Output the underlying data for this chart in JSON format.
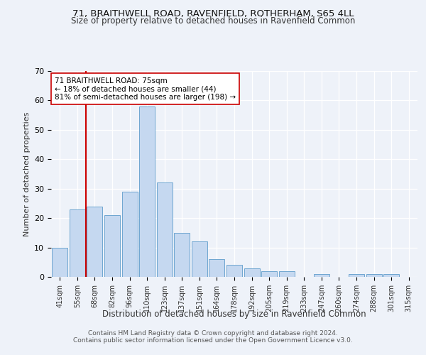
{
  "title1": "71, BRAITHWELL ROAD, RAVENFIELD, ROTHERHAM, S65 4LL",
  "title2": "Size of property relative to detached houses in Ravenfield Common",
  "xlabel": "Distribution of detached houses by size in Ravenfield Common",
  "ylabel": "Number of detached properties",
  "categories": [
    "41sqm",
    "55sqm",
    "68sqm",
    "82sqm",
    "96sqm",
    "110sqm",
    "123sqm",
    "137sqm",
    "151sqm",
    "164sqm",
    "178sqm",
    "192sqm",
    "205sqm",
    "219sqm",
    "233sqm",
    "247sqm",
    "260sqm",
    "274sqm",
    "288sqm",
    "301sqm",
    "315sqm"
  ],
  "values": [
    10,
    23,
    24,
    21,
    29,
    58,
    32,
    15,
    12,
    6,
    4,
    3,
    2,
    2,
    0,
    1,
    0,
    1,
    1,
    1,
    0
  ],
  "bar_color": "#c5d8f0",
  "bar_edge_color": "#6ea6d0",
  "vline_color": "#cc0000",
  "vline_x_index": 2,
  "annotation_text": "71 BRAITHWELL ROAD: 75sqm\n← 18% of detached houses are smaller (44)\n81% of semi-detached houses are larger (198) →",
  "annotation_box_color": "#ffffff",
  "annotation_box_edge": "#cc0000",
  "background_color": "#eef2f9",
  "grid_color": "#ffffff",
  "footer1": "Contains HM Land Registry data © Crown copyright and database right 2024.",
  "footer2": "Contains public sector information licensed under the Open Government Licence v3.0.",
  "ylim": [
    0,
    70
  ],
  "yticks": [
    0,
    10,
    20,
    30,
    40,
    50,
    60,
    70
  ]
}
